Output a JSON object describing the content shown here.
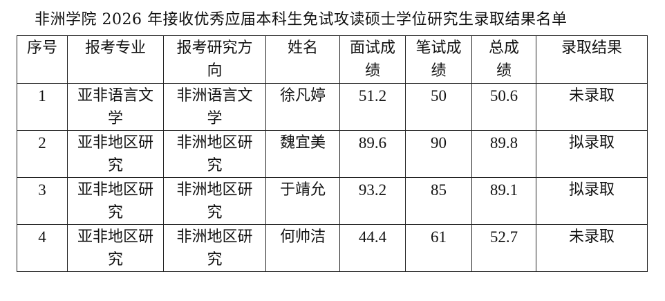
{
  "title": "非洲学院 2026 年接收优秀应届本科生免试攻读硕士学位研究生录取结果名单",
  "headers": [
    "序号",
    "报考专业",
    "报考研究方向",
    "姓名",
    "面试成绩",
    "笔试成绩",
    "总成绩",
    "录取结果"
  ],
  "rows": [
    [
      "1",
      "亚非语言文学",
      "非洲语言文学",
      "徐凡婷",
      "51.2",
      "50",
      "50.6",
      "未录取"
    ],
    [
      "2",
      "亚非地区研究",
      "非洲地区研究",
      "魏宜美",
      "89.6",
      "90",
      "89.8",
      "拟录取"
    ],
    [
      "3",
      "亚非地区研究",
      "非洲地区研究",
      "于靖允",
      "93.2",
      "85",
      "89.1",
      "拟录取"
    ],
    [
      "4",
      "亚非地区研究",
      "非洲地区研究",
      "何帅洁",
      "44.4",
      "61",
      "52.7",
      "未录取"
    ]
  ]
}
